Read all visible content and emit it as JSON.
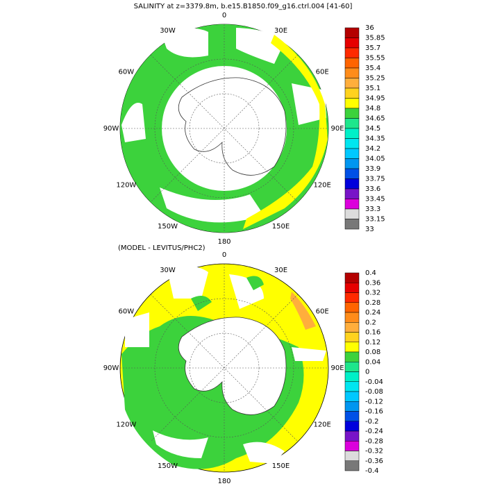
{
  "maps": [
    {
      "title": "SALINITY at z=3379.8m, b.e15.B1850.f09_g16.ctrl.004 [41-60]",
      "lon_labels": [
        "0",
        "30E",
        "60E",
        "90E",
        "120E",
        "150E",
        "180",
        "150W",
        "120W",
        "90W",
        "60W",
        "30W"
      ],
      "colorbar": {
        "levels": [
          36,
          35.85,
          35.7,
          35.55,
          35.4,
          35.25,
          35.1,
          34.95,
          34.8,
          34.65,
          34.5,
          34.35,
          34.2,
          34.05,
          33.9,
          33.75,
          33.6,
          33.45,
          33.3,
          33.15,
          33
        ],
        "colors": [
          "#b40000",
          "#e60000",
          "#ff2a00",
          "#ff6400",
          "#ff8c1a",
          "#ffae3c",
          "#ffd21e",
          "#ffff00",
          "#3cd23c",
          "#1ee68c",
          "#00f0c8",
          "#00e6f0",
          "#00c8ff",
          "#0096f0",
          "#0050e6",
          "#0000dc",
          "#7814c8",
          "#dc00dc",
          "#dcdcdc",
          "#787878"
        ]
      }
    },
    {
      "title": "(MODEL - LEVITUS/PHC2)",
      "lon_labels": [
        "0",
        "30E",
        "60E",
        "90E",
        "120E",
        "150E",
        "180",
        "150W",
        "120W",
        "90W",
        "60W",
        "30W"
      ],
      "colorbar": {
        "levels": [
          0.4,
          0.36,
          0.32,
          0.28,
          0.24,
          0.2,
          0.16,
          0.12,
          0.08,
          0.04,
          0,
          -0.04,
          -0.08,
          -0.12,
          -0.16,
          -0.2,
          -0.24,
          -0.28,
          -0.32,
          -0.36,
          -0.4
        ],
        "colors": [
          "#b40000",
          "#e60000",
          "#ff2a00",
          "#ff6400",
          "#ff8c1a",
          "#ffae3c",
          "#ffd21e",
          "#ffff00",
          "#3cd23c",
          "#1ee68c",
          "#00f0c8",
          "#00e6f0",
          "#00c8ff",
          "#0096f0",
          "#0050e6",
          "#0000dc",
          "#7814c8",
          "#dc00dc",
          "#dcdcdc",
          "#787878"
        ]
      }
    }
  ]
}
